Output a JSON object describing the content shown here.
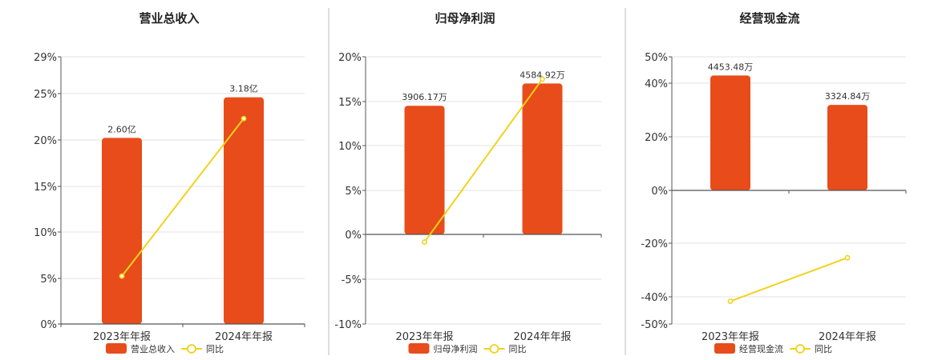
{
  "chart_data": [
    {
      "type": "bar",
      "title": "营业总收入",
      "categories": [
        "2023年年报",
        "2024年年报"
      ],
      "series": [
        {
          "name": "营业总收入",
          "kind": "bar",
          "bar_labels": [
            "2.60亿",
            "3.18亿"
          ],
          "values_percent_axis": [
            20.2,
            24.6
          ]
        },
        {
          "name": "同比",
          "kind": "line",
          "values": [
            5.2,
            22.3
          ]
        }
      ],
      "y_ticks": [
        "29%",
        "25%",
        "20%",
        "15%",
        "10%",
        "5%",
        "0%"
      ],
      "ylim": [
        0,
        29
      ],
      "grid": true,
      "legend": "bottom",
      "colors": {
        "bar": "#e84c1a",
        "line": "#f2d21c"
      }
    },
    {
      "type": "bar",
      "title": "归母净利润",
      "categories": [
        "2023年年报",
        "2024年年报"
      ],
      "series": [
        {
          "name": "归母净利润",
          "kind": "bar",
          "bar_labels": [
            "3906.17万",
            "4584.92万"
          ],
          "values_percent_axis": [
            14.5,
            17.0
          ]
        },
        {
          "name": "同比",
          "kind": "line",
          "values": [
            -0.8,
            17.5
          ]
        }
      ],
      "y_ticks": [
        "20%",
        "15%",
        "10%",
        "5%",
        "0%",
        "-5%",
        "-10%"
      ],
      "ylim": [
        -10,
        20
      ],
      "grid": true,
      "legend": "bottom",
      "colors": {
        "bar": "#e84c1a",
        "line": "#f2d21c"
      }
    },
    {
      "type": "bar",
      "title": "经营现金流",
      "categories": [
        "2023年年报",
        "2024年年报"
      ],
      "series": [
        {
          "name": "经营现金流",
          "kind": "bar",
          "bar_labels": [
            "4453.48万",
            "3324.84万"
          ],
          "values_percent_axis": [
            43,
            32
          ]
        },
        {
          "name": "同比",
          "kind": "line",
          "values": [
            -41.5,
            -25.2
          ]
        }
      ],
      "y_ticks": [
        "50%",
        "40%",
        "20%",
        "0%",
        "-20%",
        "-40%",
        "-50%"
      ],
      "ylim": [
        -50,
        50
      ],
      "grid": true,
      "legend": "bottom",
      "colors": {
        "bar": "#e84c1a",
        "line": "#f2d21c"
      }
    }
  ]
}
